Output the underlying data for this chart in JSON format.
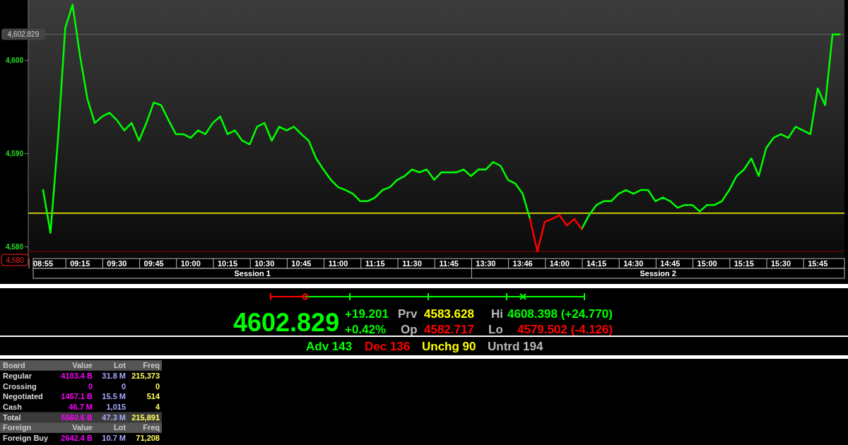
{
  "chart_data": [
    {
      "type": "line",
      "categories": [
        "08:55",
        null,
        null,
        null,
        null,
        "09:15",
        null,
        null,
        null,
        null,
        "09:30",
        null,
        null,
        null,
        null,
        "09:45",
        null,
        null,
        null,
        null,
        "10:00",
        null,
        null,
        null,
        null,
        "10:15",
        null,
        null,
        null,
        null,
        "10:30",
        null,
        null,
        null,
        null,
        "10:45",
        null,
        null,
        null,
        null,
        "11:00",
        null,
        null,
        null,
        null,
        "11:15",
        null,
        null,
        null,
        null,
        "11:30",
        null,
        null,
        null,
        null,
        "11:45",
        null,
        null,
        null,
        null,
        "13:30",
        null,
        null,
        null,
        null,
        "13:46",
        null,
        null,
        null,
        null,
        "14:00",
        null,
        null,
        null,
        null,
        "14:15",
        null,
        null,
        null,
        null,
        "14:30",
        null,
        null,
        null,
        null,
        "14:45",
        null,
        null,
        null,
        null,
        "15:00",
        null,
        null,
        null,
        null,
        "15:15",
        null,
        null,
        null,
        null,
        "15:30",
        null,
        null,
        null,
        null,
        "15:45",
        null,
        null,
        null
      ],
      "series": [
        {
          "color": "#00ff00",
          "values": [
            4586.1,
            4581.5,
            4591.4,
            4603.5,
            4606.0,
            4600.5,
            4595.9,
            4593.3,
            4594.0,
            4594.4,
            4593.6,
            4592.5,
            4593.3,
            4591.4,
            4593.3,
            4595.5,
            4595.2,
            4593.6,
            4592.1,
            4592.1,
            4591.7,
            4592.5,
            4592.1,
            4593.3,
            4594.0,
            4592.1,
            4592.5,
            4591.4,
            4591.0,
            4592.9,
            4593.3,
            4591.4,
            4592.9,
            4592.5,
            4592.9,
            4592.1,
            4591.4,
            4589.5,
            4588.3,
            4587.2,
            4586.4,
            4586.1,
            4585.7,
            4584.9,
            4584.9,
            4585.3,
            4586.1,
            4586.4,
            4587.2,
            4587.6,
            4588.3,
            4588.0,
            4588.3,
            4587.2,
            4588.0,
            4588.0,
            4588.0,
            4588.3,
            4587.6,
            4588.3,
            4588.3,
            4589.1,
            4588.7,
            4587.2,
            4586.8,
            4585.7,
            4583.0,
            null,
            null,
            null,
            null,
            null,
            null,
            4581.9,
            4583.4,
            4584.5,
            4584.9,
            4584.9,
            4585.7,
            4586.1,
            4585.7,
            4586.1,
            4586.1,
            4584.9,
            4585.3,
            4584.9,
            4584.2,
            4584.5,
            4584.5,
            4583.8,
            4584.5,
            4584.5,
            4584.9,
            4586.1,
            4587.6,
            4588.3,
            4589.5,
            4587.6,
            4590.6,
            4591.7,
            4592.1,
            4591.7,
            4592.9,
            4592.5,
            4592.1,
            4597.0,
            4595.2,
            4602.8,
            4602.8
          ]
        },
        {
          "color": "#ff0000",
          "values": [
            null,
            null,
            null,
            null,
            null,
            null,
            null,
            null,
            null,
            null,
            null,
            null,
            null,
            null,
            null,
            null,
            null,
            null,
            null,
            null,
            null,
            null,
            null,
            null,
            null,
            null,
            null,
            null,
            null,
            null,
            null,
            null,
            null,
            null,
            null,
            null,
            null,
            null,
            null,
            null,
            null,
            null,
            null,
            null,
            null,
            null,
            null,
            null,
            null,
            null,
            null,
            null,
            null,
            null,
            null,
            null,
            null,
            null,
            null,
            null,
            null,
            null,
            null,
            null,
            null,
            null,
            4583.0,
            4579.5,
            4582.7,
            4583.0,
            4583.4,
            4582.3,
            4583.0,
            4581.9,
            null,
            null,
            null,
            null,
            null,
            null,
            null,
            null,
            null,
            null,
            null,
            null,
            null,
            null,
            null,
            null,
            null,
            null,
            null,
            null,
            null,
            null,
            null,
            null,
            null,
            null,
            null,
            null,
            null,
            null,
            null,
            null,
            null,
            null,
            null
          ]
        }
      ],
      "ylim": [
        4578.9,
        4606.5
      ],
      "yticks": [
        {
          "value": 4580,
          "label": "4,580"
        },
        {
          "value": 4590,
          "label": "4,590"
        },
        {
          "value": 4600,
          "label": "4,600"
        }
      ],
      "ref_lines": [
        {
          "axis": "y",
          "value": 4583.628,
          "color": "#ffff00"
        },
        {
          "axis": "y",
          "value": 4602.829,
          "label": "4,602.829",
          "color": "#666666"
        },
        {
          "axis": "y",
          "value": 4579.502,
          "label": "4,580",
          "color": "#8b0000"
        }
      ],
      "annotations": [
        "Session 1",
        "Session 2"
      ]
    },
    {
      "type": "other",
      "annotations": [
        "4602.829",
        "+19.201",
        "+0.42%",
        "Prv",
        "4583.628",
        "Op",
        "4582.717",
        "Hi",
        "4608.398 (+24.770)",
        "Lo",
        "4579.502 (-4.126)",
        "Adv 143",
        "Dec 136",
        "Unchg 90",
        "Untrd 194"
      ]
    },
    {
      "type": "other",
      "annotations": [
        "Board",
        "Value",
        "Lot",
        "Freq",
        "Regular",
        "4103.4 B",
        "31.8 M",
        "215,373",
        "Crossing",
        "0",
        "0",
        "0",
        "Negotiated",
        "1457.1 B",
        "15.5 M",
        "514",
        "Cash",
        "46.7 M",
        "1,015",
        "4",
        "Total",
        "5560.6 B",
        "47.3 M",
        "215,891",
        "Foreign",
        "Value",
        "Lot",
        "Freq",
        "Foreign Buy",
        "2642.4 B",
        "10.7 M",
        "71,208"
      ]
    }
  ]
}
